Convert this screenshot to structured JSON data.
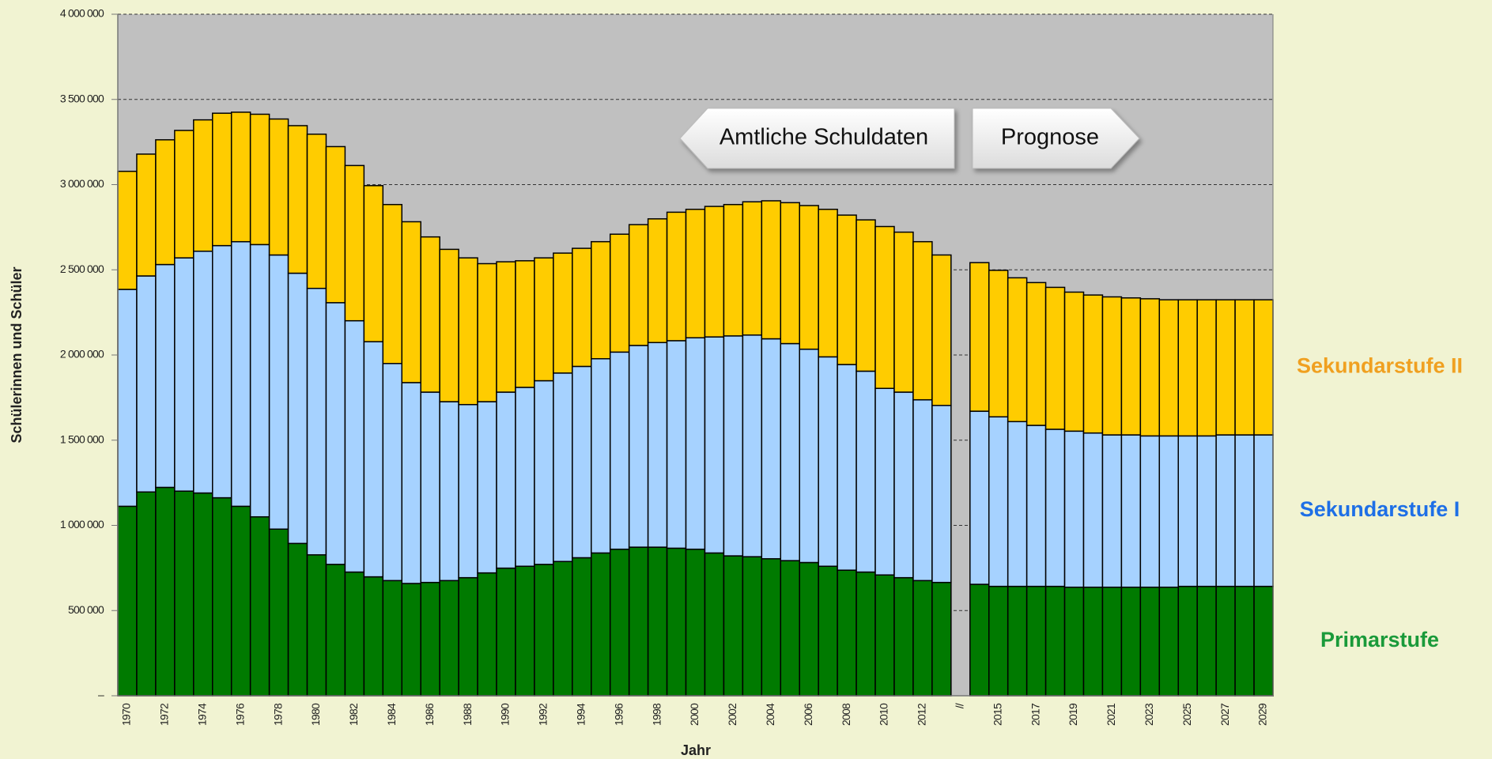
{
  "chart_data": {
    "type": "stacked-bar",
    "x_label": "Jahr",
    "y_label": "Schülerinnen und Schüler",
    "annotations": [
      "Amtliche Schuldaten",
      "Prognose"
    ],
    "categories": [
      "1970",
      null,
      "1972",
      null,
      "1974",
      null,
      "1976",
      null,
      "1978",
      null,
      "1980",
      null,
      "1982",
      null,
      "1984",
      null,
      "1986",
      null,
      "1988",
      null,
      "1990",
      null,
      "1992",
      null,
      "1994",
      null,
      "1996",
      null,
      "1998",
      null,
      "2000",
      null,
      "2002",
      null,
      "2004",
      null,
      "2006",
      null,
      "2008",
      null,
      "2010",
      null,
      "2012",
      null,
      "//",
      null,
      "2015",
      null,
      "2017",
      null,
      "2019",
      null,
      "2021",
      null,
      "2023",
      null,
      "2025",
      null,
      "2027",
      null,
      "2029"
    ],
    "series": [
      {
        "name": "Primarstufe",
        "color": "#007a00",
        "label_color": "#1a9a3a",
        "values": [
          1112000,
          1196000,
          1223000,
          1201000,
          1190000,
          1162000,
          1112000,
          1050000,
          978000,
          894000,
          827000,
          771000,
          726000,
          698000,
          676000,
          659000,
          665000,
          676000,
          693000,
          721000,
          749000,
          760000,
          771000,
          788000,
          810000,
          838000,
          860000,
          872000,
          872000,
          866000,
          860000,
          838000,
          821000,
          816000,
          804000,
          793000,
          782000,
          760000,
          737000,
          726000,
          709000,
          693000,
          676000,
          665000,
          null,
          654000,
          642000,
          642000,
          642000,
          642000,
          637000,
          637000,
          637000,
          637000,
          637000,
          637000,
          642000,
          642000,
          642000,
          642000,
          642000
        ]
      },
      {
        "name": "Sekundarstufe I",
        "color": "#a6d2ff",
        "label_color": "#1e6fe6",
        "values": [
          1273000,
          1268000,
          1308000,
          1369000,
          1419000,
          1480000,
          1553000,
          1598000,
          1609000,
          1586000,
          1564000,
          1536000,
          1475000,
          1380000,
          1274000,
          1179000,
          1117000,
          1050000,
          1016000,
          1005000,
          1033000,
          1050000,
          1078000,
          1106000,
          1123000,
          1140000,
          1157000,
          1184000,
          1201000,
          1218000,
          1241000,
          1268000,
          1291000,
          1301000,
          1291000,
          1274000,
          1252000,
          1229000,
          1207000,
          1179000,
          1095000,
          1089000,
          1061000,
          1039000,
          null,
          1016000,
          995000,
          967000,
          945000,
          922000,
          916000,
          905000,
          894000,
          894000,
          888000,
          888000,
          883000,
          883000,
          889000,
          889000,
          889000
        ]
      },
      {
        "name": "Sekundarstufe II",
        "color": "#ffcc00",
        "label_color": "#f0a020",
        "values": [
          693000,
          715000,
          732000,
          748000,
          771000,
          777000,
          760000,
          765000,
          798000,
          866000,
          905000,
          916000,
          911000,
          916000,
          933000,
          944000,
          911000,
          894000,
          861000,
          810000,
          765000,
          743000,
          721000,
          704000,
          693000,
          687000,
          692000,
          709000,
          726000,
          754000,
          754000,
          766000,
          771000,
          782000,
          810000,
          827000,
          843000,
          866000,
          877000,
          888000,
          950000,
          939000,
          928000,
          883000,
          null,
          872000,
          860000,
          844000,
          838000,
          833000,
          816000,
          810000,
          810000,
          804000,
          805000,
          799000,
          799000,
          799000,
          793000,
          793000,
          793000
        ]
      }
    ],
    "ylim": [
      0,
      4000000
    ],
    "yticks": [
      {
        "value": 0,
        "label": "–"
      },
      {
        "value": 500000,
        "label": "500 000"
      },
      {
        "value": 1000000,
        "label": "1 000 000"
      },
      {
        "value": 1500000,
        "label": "1 500 000"
      },
      {
        "value": 2000000,
        "label": "2 000 000"
      },
      {
        "value": 2500000,
        "label": "2 500 000"
      },
      {
        "value": 3000000,
        "label": "3 000 000"
      },
      {
        "value": 3500000,
        "label": "3 500 000"
      },
      {
        "value": 4000000,
        "label": "4 000 000"
      }
    ],
    "grid": true
  }
}
